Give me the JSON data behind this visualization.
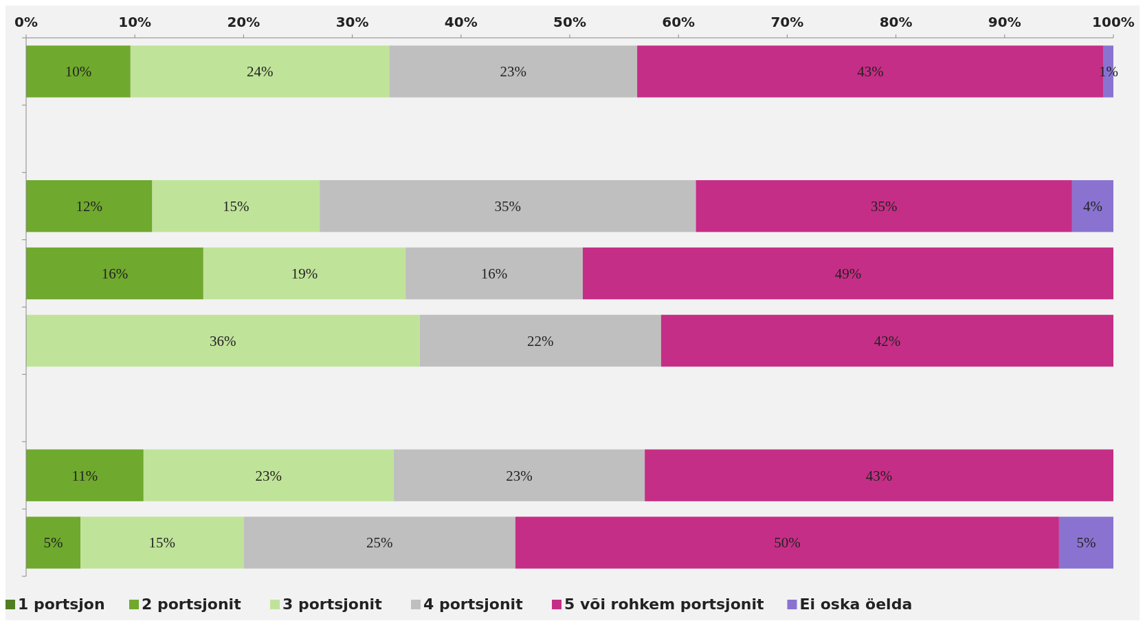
{
  "chart_data": {
    "type": "bar",
    "orientation": "horizontal",
    "stacked": true,
    "categories": [
      null,
      null,
      null,
      null,
      null,
      null,
      null,
      null
    ],
    "xlim": [
      0,
      100
    ],
    "xticks": [
      {
        "value": 0,
        "label": "0%"
      },
      {
        "value": 10,
        "label": "10%"
      },
      {
        "value": 20,
        "label": "20%"
      },
      {
        "value": 30,
        "label": "30%"
      },
      {
        "value": 40,
        "label": "40%"
      },
      {
        "value": 50,
        "label": "50%"
      },
      {
        "value": 60,
        "label": "60%"
      },
      {
        "value": 70,
        "label": "70%"
      },
      {
        "value": 80,
        "label": "80%"
      },
      {
        "value": 90,
        "label": "90%"
      },
      {
        "value": 100,
        "label": "100%"
      }
    ],
    "series": [
      {
        "name": "1 portsjon",
        "color": "#4f7f1f",
        "values": [
          null,
          null,
          null,
          null,
          null,
          null,
          null,
          null
        ]
      },
      {
        "name": "2 portsjonit",
        "color": "#6fa92e",
        "values": [
          9.6,
          null,
          11.6,
          16.3,
          null,
          null,
          10.8,
          5
        ],
        "value_labels": [
          "10%",
          null,
          "12%",
          "16%",
          null,
          null,
          "11%",
          "5%"
        ]
      },
      {
        "name": "3 portsjonit",
        "color": "#c0e39a",
        "values": [
          23.8,
          null,
          15.4,
          18.6,
          36.2,
          null,
          23,
          15
        ],
        "value_labels": [
          "24%",
          null,
          "15%",
          "19%",
          "36%",
          null,
          "23%",
          "15%"
        ]
      },
      {
        "name": "4 portsjonit",
        "color": "#bfbfbf",
        "values": [
          22.8,
          null,
          34.6,
          16.3,
          22.2,
          null,
          23.1,
          25
        ],
        "value_labels": [
          "23%",
          null,
          "35%",
          "16%",
          "22%",
          null,
          "23%",
          "25%"
        ]
      },
      {
        "name": "5 või rohkem portsjonit",
        "color": "#c52e86",
        "values": [
          42.9,
          null,
          34.6,
          48.8,
          41.6,
          null,
          43.1,
          50
        ],
        "value_labels": [
          "43%",
          null,
          "35%",
          "49%",
          "42%",
          null,
          "43%",
          "50%"
        ]
      },
      {
        "name": "Ei oska öelda",
        "color": "#8a73d0",
        "values": [
          0.9,
          null,
          3.8,
          null,
          null,
          null,
          null,
          5
        ],
        "value_labels": [
          "1%",
          null,
          "4%",
          null,
          null,
          null,
          null,
          "5%"
        ]
      }
    ],
    "legend": "bottom"
  }
}
